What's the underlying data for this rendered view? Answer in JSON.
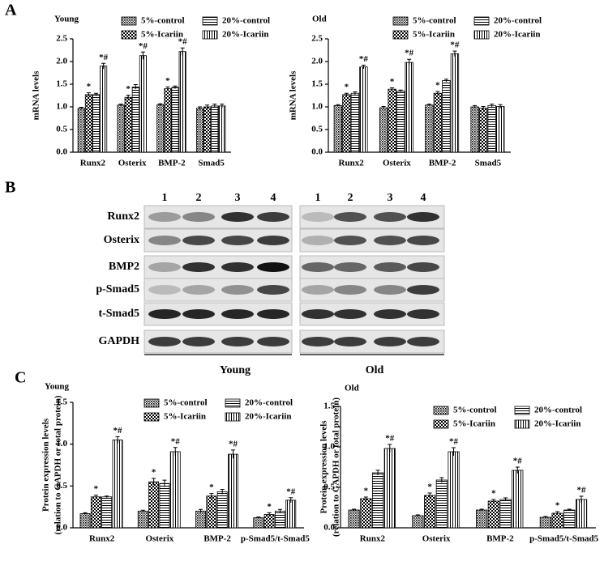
{
  "panel_labels": [
    "A",
    "B",
    "C"
  ],
  "blot": {
    "lanes": [
      "1",
      "2",
      "3",
      "4"
    ],
    "rows": [
      "Runx2",
      "Osterix",
      "BMP2",
      "p-Smad5",
      "t-Smad5",
      "GAPDH"
    ],
    "groups": [
      "Young",
      "Old"
    ]
  },
  "chart_data": [
    {
      "type": "bar",
      "title": "Young",
      "ylabel": "mRNA levels",
      "categories": [
        "Runx2",
        "Osterix",
        "BMP-2",
        "Smad5"
      ],
      "ylim": [
        0,
        2.5
      ],
      "yticks": [
        {
          "value": 0,
          "label": "0.0"
        },
        0.5,
        {
          "value": 1,
          "label": "1.0"
        },
        1.5,
        {
          "value": 2,
          "label": "2.0"
        },
        2.5
      ],
      "series": [
        {
          "name": "5%-control",
          "color": "#000000",
          "pattern": "dots",
          "values": [
            0.97,
            1.04,
            1.05,
            0.97
          ],
          "errors": [
            0.02,
            0.02,
            0.02,
            0.03
          ],
          "annotations": [
            null,
            null,
            null,
            null
          ]
        },
        {
          "name": "5%-Icariin",
          "color": "#000000",
          "pattern": "checker",
          "values": [
            1.27,
            1.21,
            1.4,
            1.0
          ],
          "errors": [
            0.04,
            0.05,
            0.04,
            0.04
          ],
          "annotations": [
            "*",
            "*",
            "*",
            null
          ]
        },
        {
          "name": "20%-control",
          "color": "#000000",
          "pattern": "hlines",
          "values": [
            1.27,
            1.44,
            1.43,
            1.02
          ],
          "errors": [
            0.03,
            0.05,
            0.03,
            0.04
          ],
          "annotations": [
            null,
            null,
            null,
            null
          ]
        },
        {
          "name": "20%-Icariin",
          "color": "#000000",
          "pattern": "vlines",
          "values": [
            1.9,
            2.13,
            2.22,
            1.02
          ],
          "errors": [
            0.06,
            0.08,
            0.08,
            0.04
          ],
          "annotations": [
            "*#",
            "*#",
            "*#",
            null
          ]
        }
      ]
    },
    {
      "type": "bar",
      "title": "Old",
      "ylabel": "mRNA levels",
      "categories": [
        "Runx2",
        "Osterix",
        "BMP-2",
        "Smad5"
      ],
      "ylim": [
        0,
        2.5
      ],
      "yticks": [
        {
          "value": 0,
          "label": "0.0"
        },
        0.5,
        {
          "value": 1,
          "label": "1.0"
        },
        1.5,
        {
          "value": 2,
          "label": "2.0"
        },
        2.5
      ],
      "series": [
        {
          "name": "5%-control",
          "color": "#000000",
          "pattern": "dots",
          "values": [
            1.03,
            0.98,
            1.04,
            1.0
          ],
          "errors": [
            0.02,
            0.03,
            0.02,
            0.03
          ],
          "annotations": [
            null,
            null,
            null,
            null
          ]
        },
        {
          "name": "5%-Icariin",
          "color": "#000000",
          "pattern": "checker",
          "values": [
            1.27,
            1.39,
            1.3,
            0.97
          ],
          "errors": [
            0.03,
            0.03,
            0.04,
            0.04
          ],
          "annotations": [
            "*",
            "*",
            "*",
            null
          ]
        },
        {
          "name": "20%-control",
          "color": "#000000",
          "pattern": "hlines",
          "values": [
            1.3,
            1.35,
            1.58,
            1.03
          ],
          "errors": [
            0.03,
            0.02,
            0.03,
            0.03
          ],
          "annotations": [
            null,
            null,
            null,
            null
          ]
        },
        {
          "name": "20%-Icariin",
          "color": "#000000",
          "pattern": "vlines",
          "values": [
            1.88,
            1.98,
            2.17,
            1.01
          ],
          "errors": [
            0.04,
            0.07,
            0.06,
            0.04
          ],
          "annotations": [
            "*#",
            "*#",
            "*#",
            null
          ]
        }
      ]
    },
    {
      "type": "bar",
      "title": "Young",
      "ylabel": [
        "Protein expression levels",
        "(relation to GAPDH or total protein)"
      ],
      "categories": [
        "Runx2",
        "Osterix",
        "BMP-2",
        "p-Smad5/t-Smad5"
      ],
      "ylim": [
        0,
        1.5
      ],
      "yticks": [
        {
          "value": 0,
          "label": "0.0"
        },
        0.5,
        {
          "value": 1,
          "label": "1.0"
        },
        1.5
      ],
      "series": [
        {
          "name": "5%-control",
          "color": "#000000",
          "pattern": "dots",
          "values": [
            0.17,
            0.2,
            0.2,
            0.12
          ],
          "errors": [
            0.01,
            0.01,
            0.02,
            0.01
          ],
          "annotations": [
            null,
            null,
            null,
            null
          ]
        },
        {
          "name": "5%-Icariin",
          "color": "#000000",
          "pattern": "checker",
          "values": [
            0.37,
            0.55,
            0.38,
            0.16
          ],
          "errors": [
            0.02,
            0.04,
            0.03,
            0.02
          ],
          "annotations": [
            "*",
            "*",
            "*",
            "*"
          ]
        },
        {
          "name": "20%-control",
          "color": "#000000",
          "pattern": "hlines",
          "values": [
            0.37,
            0.53,
            0.43,
            0.2
          ],
          "errors": [
            0.01,
            0.04,
            0.03,
            0.02
          ],
          "annotations": [
            null,
            null,
            null,
            null
          ]
        },
        {
          "name": "20%-Icariin",
          "color": "#000000",
          "pattern": "vlines",
          "values": [
            1.05,
            0.91,
            0.88,
            0.33
          ],
          "errors": [
            0.04,
            0.05,
            0.05,
            0.03
          ],
          "annotations": [
            "*#",
            "*#",
            "*#",
            "*#"
          ]
        }
      ]
    },
    {
      "type": "bar",
      "title": "Old",
      "ylabel": [
        "Protein expression levels",
        "(relation to GAPDH or total protein)"
      ],
      "categories": [
        "Runx2",
        "Osterix",
        "BMP-2",
        "p-Smad5/t-Smad5"
      ],
      "ylim": [
        0,
        1.5
      ],
      "yticks": [
        {
          "value": 0,
          "label": "0.0"
        },
        0.5,
        {
          "value": 1,
          "label": "1.0"
        },
        1.5
      ],
      "series": [
        {
          "name": "5%-control",
          "color": "#000000",
          "pattern": "dots",
          "values": [
            0.22,
            0.15,
            0.22,
            0.13
          ],
          "errors": [
            0.01,
            0.01,
            0.01,
            0.01
          ],
          "annotations": [
            null,
            null,
            null,
            null
          ]
        },
        {
          "name": "5%-Icariin",
          "color": "#000000",
          "pattern": "checker",
          "values": [
            0.36,
            0.4,
            0.33,
            0.18
          ],
          "errors": [
            0.02,
            0.03,
            0.02,
            0.02
          ],
          "annotations": [
            "*",
            "*",
            "*",
            "*"
          ]
        },
        {
          "name": "20%-control",
          "color": "#000000",
          "pattern": "hlines",
          "values": [
            0.68,
            0.59,
            0.35,
            0.22
          ],
          "errors": [
            0.03,
            0.03,
            0.02,
            0.01
          ],
          "annotations": [
            null,
            null,
            null,
            null
          ]
        },
        {
          "name": "20%-Icariin",
          "color": "#000000",
          "pattern": "vlines",
          "values": [
            0.98,
            0.94,
            0.71,
            0.35
          ],
          "errors": [
            0.05,
            0.05,
            0.04,
            0.04
          ],
          "annotations": [
            "*#",
            "*#",
            "*#",
            "*#"
          ]
        }
      ]
    }
  ]
}
